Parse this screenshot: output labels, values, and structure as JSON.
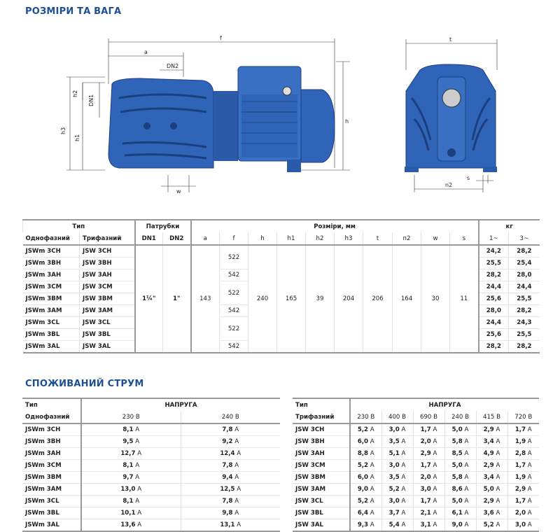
{
  "section1_title": "РОЗМІРИ ТА ВАГА",
  "section2_title": "СПОЖИВАНИЙ СТРУМ",
  "drawing_labels": {
    "f": "f",
    "a": "a",
    "dn2": "DN2",
    "h2": "h2",
    "dn1": "DN1",
    "h3": "h3",
    "h1": "h1",
    "h": "h",
    "w": "w",
    "t": "t",
    "n2": "n2",
    "s": "s"
  },
  "colors": {
    "title": "#1d4f91",
    "pump_body": "#2f64b8",
    "pump_dark": "#1c3f80"
  },
  "dims_table": {
    "group_type": "Тип",
    "group_ports": "Патрубки",
    "group_dims": "Розміри, мм",
    "group_weight": "кг",
    "col_single": "Однофазний",
    "col_three": "Трифазний",
    "col_dn1": "DN1",
    "col_dn2": "DN2",
    "dim_cols": [
      "a",
      "f",
      "h",
      "h1",
      "h2",
      "h3",
      "t",
      "n2",
      "w",
      "s"
    ],
    "weight_cols": [
      "1~",
      "3~"
    ],
    "dn1": "1¼\"",
    "dn2": "1\"",
    "a": "143",
    "h": "240",
    "h1": "165",
    "h2": "39",
    "h3": "204",
    "t": "206",
    "n2": "164",
    "w": "30",
    "s": "11",
    "f_values": [
      "522",
      "542",
      "522",
      "542",
      "522",
      "542"
    ],
    "rows": [
      {
        "single": "JSWm 3CH",
        "three": "JSW 3CH",
        "kg1": "24,2",
        "kg3": "28,2"
      },
      {
        "single": "JSWm 3BH",
        "three": "JSW 3BH",
        "kg1": "25,5",
        "kg3": "25,4"
      },
      {
        "single": "JSWm 3AH",
        "three": "JSW 3AH",
        "kg1": "28,2",
        "kg3": "28,0"
      },
      {
        "single": "JSWm 3CM",
        "three": "JSW 3CM",
        "kg1": "24,4",
        "kg3": "24,4"
      },
      {
        "single": "JSWm 3BM",
        "three": "JSW 3BM",
        "kg1": "25,6",
        "kg3": "25,5"
      },
      {
        "single": "JSWm 3AM",
        "three": "JSW 3AM",
        "kg1": "28,0",
        "kg3": "28,2"
      },
      {
        "single": "JSWm 3CL",
        "three": "JSW 3CL",
        "kg1": "24,4",
        "kg3": "24,3"
      },
      {
        "single": "JSWm 3BL",
        "three": "JSW 3BL",
        "kg1": "25,6",
        "kg3": "25,5"
      },
      {
        "single": "JSWm 3AL",
        "three": "JSW 3AL",
        "kg1": "28,2",
        "kg3": "28,2"
      }
    ]
  },
  "current_single": {
    "type": "Тип",
    "voltage": "НАПРУГА",
    "sub": "Однофазний",
    "unit": "A",
    "voltages": [
      "230 В",
      "240 В"
    ],
    "rows": [
      {
        "model": "JSWm 3CH",
        "v": [
          "8,1",
          "7,8"
        ]
      },
      {
        "model": "JSWm 3BH",
        "v": [
          "9,5",
          "9,2"
        ]
      },
      {
        "model": "JSWm 3AH",
        "v": [
          "12,7",
          "12,4"
        ]
      },
      {
        "model": "JSWm 3CM",
        "v": [
          "8,1",
          "7,8"
        ]
      },
      {
        "model": "JSWm 3BM",
        "v": [
          "9,7",
          "9,4"
        ]
      },
      {
        "model": "JSWm 3AM",
        "v": [
          "13,0",
          "12,5"
        ]
      },
      {
        "model": "JSWm 3CL",
        "v": [
          "8,1",
          "7,8"
        ]
      },
      {
        "model": "JSWm 3BL",
        "v": [
          "10,1",
          "9,8"
        ]
      },
      {
        "model": "JSWm 3AL",
        "v": [
          "13,6",
          "13,1"
        ]
      }
    ]
  },
  "current_three": {
    "type": "Тип",
    "voltage": "НАПРУГА",
    "sub": "Трифазний",
    "unit": "A",
    "voltages": [
      "230 В",
      "400 В",
      "690 В",
      "240 В",
      "415 В",
      "720 В"
    ],
    "rows": [
      {
        "model": "JSW 3CH",
        "v": [
          "5,2",
          "3,0",
          "1,7",
          "5,0",
          "2,9",
          "1,7"
        ]
      },
      {
        "model": "JSW 3BH",
        "v": [
          "6,0",
          "3,5",
          "2,0",
          "5,8",
          "3,4",
          "1,9"
        ]
      },
      {
        "model": "JSW 3AH",
        "v": [
          "8,8",
          "5,1",
          "2,9",
          "8,5",
          "4,9",
          "2,8"
        ]
      },
      {
        "model": "JSW 3CM",
        "v": [
          "5,2",
          "3,0",
          "1,7",
          "5,0",
          "2,9",
          "1,7"
        ]
      },
      {
        "model": "JSW 3BM",
        "v": [
          "6,0",
          "3,5",
          "2,0",
          "5,8",
          "3,4",
          "1,9"
        ]
      },
      {
        "model": "JSW 3AM",
        "v": [
          "9,0",
          "5,2",
          "3,0",
          "8,6",
          "5,0",
          "2,9"
        ]
      },
      {
        "model": "JSW 3CL",
        "v": [
          "5,2",
          "3,0",
          "1,7",
          "5,0",
          "2,9",
          "1,7"
        ]
      },
      {
        "model": "JSW 3BL",
        "v": [
          "6,4",
          "3,7",
          "2,1",
          "6,1",
          "3,6",
          "2,0"
        ]
      },
      {
        "model": "JSW 3AL",
        "v": [
          "9,3",
          "5,4",
          "3,1",
          "9,0",
          "5,2",
          "3,0"
        ]
      }
    ]
  }
}
